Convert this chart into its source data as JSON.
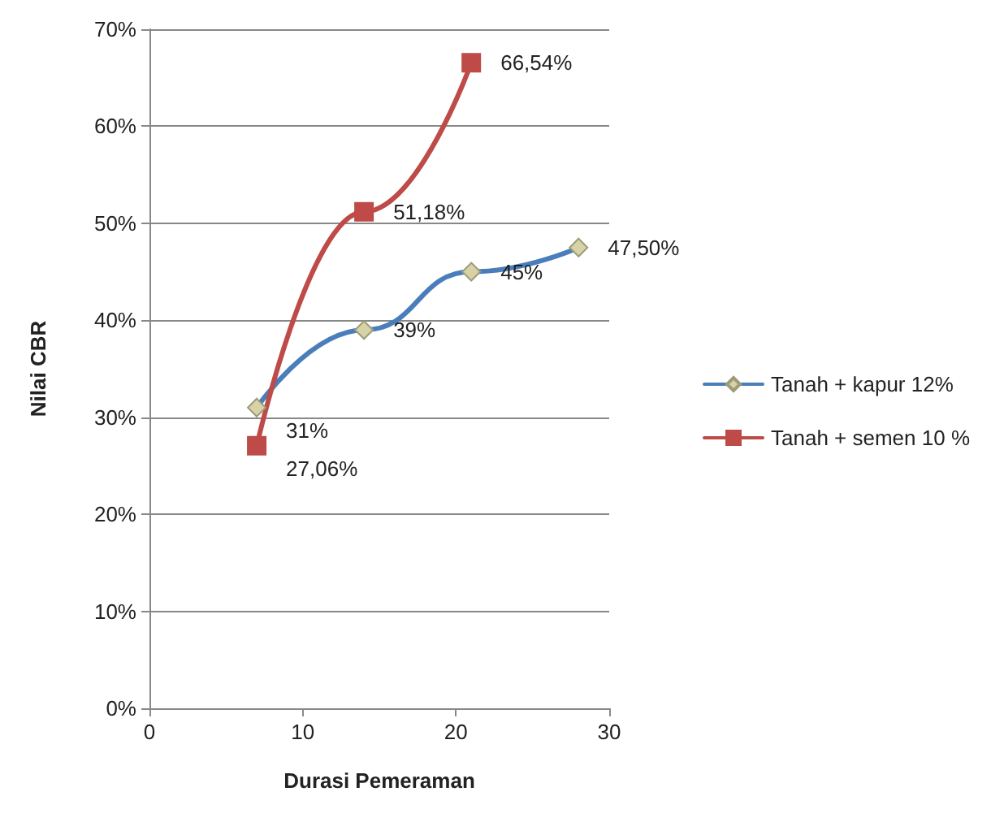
{
  "chart_data": {
    "type": "line",
    "xlabel": "Durasi Pemeraman",
    "ylabel": "Nilai CBR",
    "series": [
      {
        "name": "Tanah + kapur 12%",
        "color": "#4a7ebb",
        "marker": "diamond",
        "x": [
          7,
          14,
          21,
          28
        ],
        "values": [
          31,
          39,
          45,
          47.5
        ],
        "value_labels": [
          "31%",
          "39%",
          "45%",
          "47,50%"
        ]
      },
      {
        "name": "Tanah + semen 10 %",
        "color": "#be4b48",
        "marker": "square",
        "x": [
          7,
          14,
          21
        ],
        "values": [
          27.06,
          51.18,
          66.54
        ],
        "value_labels": [
          "27,06%",
          "51,18%",
          "66,54%"
        ]
      }
    ],
    "xlim": [
      0,
      30
    ],
    "xticks": [
      0,
      10,
      20,
      30
    ],
    "ylim": [
      0,
      70
    ],
    "yticks": [
      {
        "value": 0,
        "label": "0%"
      },
      {
        "value": 10,
        "label": "10%"
      },
      {
        "value": 20,
        "label": "20%"
      },
      {
        "value": 30,
        "label": "30%"
      },
      {
        "value": 40,
        "label": "40%"
      },
      {
        "value": 50,
        "label": "50%"
      },
      {
        "value": 60,
        "label": "60%"
      },
      {
        "value": 70,
        "label": "70%"
      }
    ],
    "grid": "y",
    "legend": "right"
  }
}
